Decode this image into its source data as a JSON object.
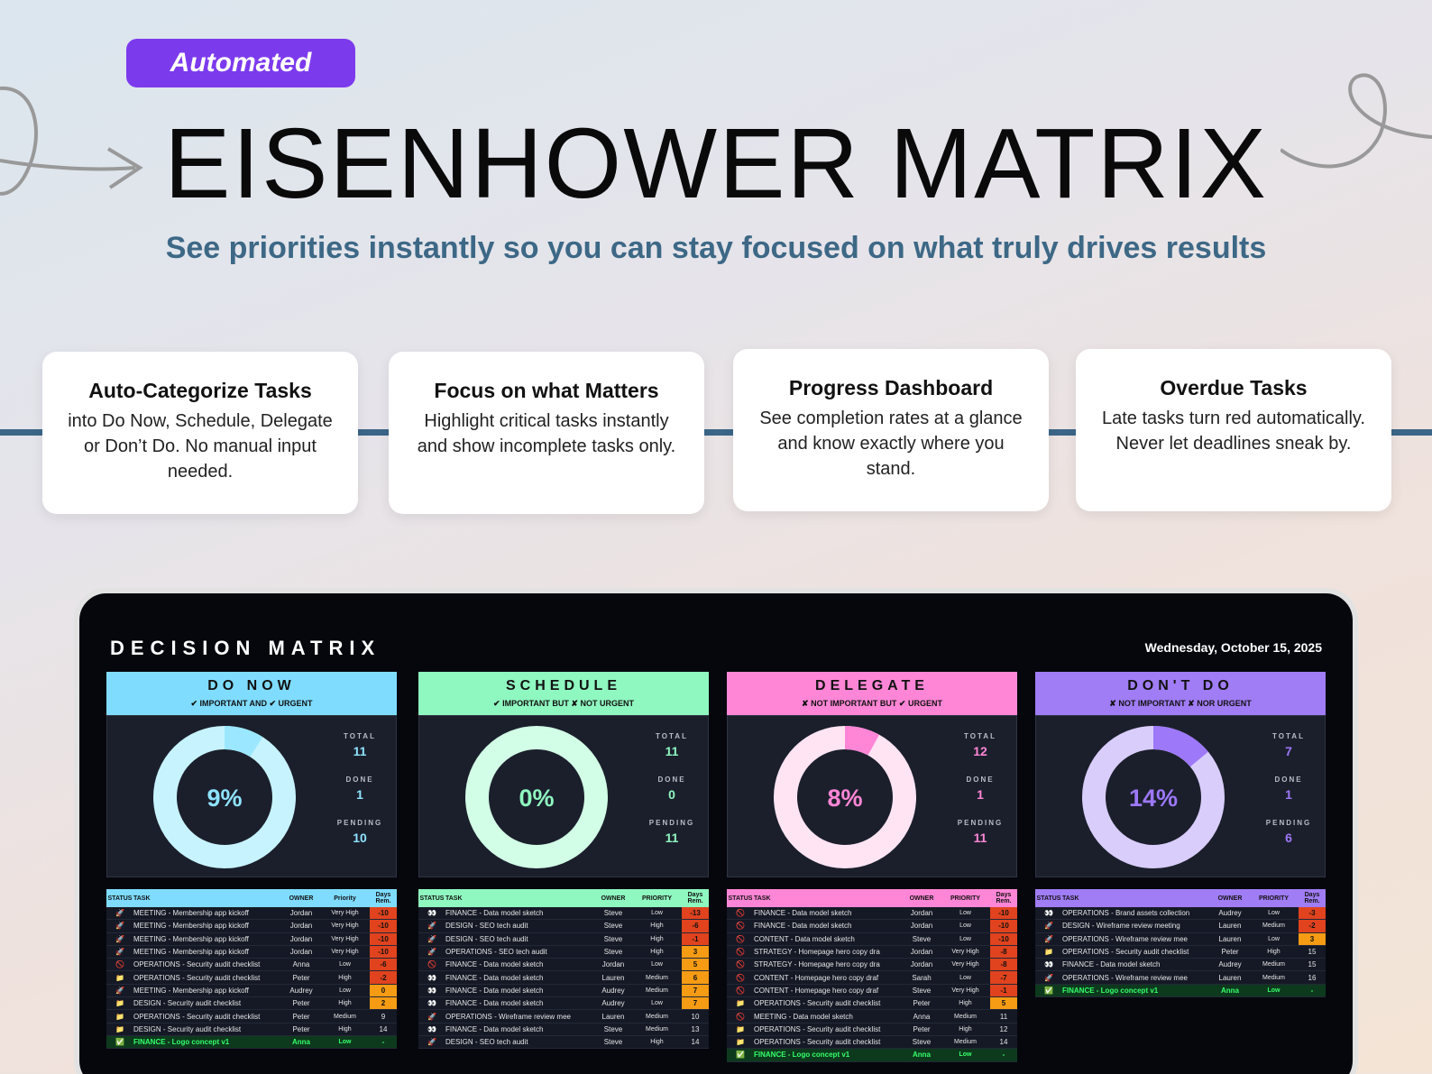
{
  "badge": "Automated",
  "title": "EISENHOWER MATRIX",
  "subtitle": "See priorities instantly so you can stay focused on what truly drives results",
  "features": [
    {
      "title": "Auto-Categorize Tasks",
      "text": "into Do Now, Schedule, Delegate or Don’t Do. No manual input needed."
    },
    {
      "title": "Focus on what Matters",
      "text": "Highlight critical tasks instantly and show incomplete tasks only."
    },
    {
      "title": "Progress Dashboard",
      "text": "See completion rates at a glance and know exactly where you stand."
    },
    {
      "title": "Overdue Tasks",
      "text": "Late tasks turn red automatically. Never let deadlines sneak by."
    }
  ],
  "dashboard": {
    "title": "DECISION MATRIX",
    "date": "Wednesday, October 15, 2025",
    "stat_labels": {
      "total": "TOTAL",
      "done": "DONE",
      "pending": "PENDING"
    },
    "quadrants": [
      {
        "name": "DO NOW",
        "subtitle": "✔ IMPORTANT AND ✔ URGENT",
        "color": "#7fdcff",
        "ring": "#c7f3ff",
        "accent": "#9be7ff",
        "text": "#8fe3ff",
        "percent": "9%",
        "fraction": 0.09,
        "total": "11",
        "done": "1",
        "pending": "10",
        "headers": [
          "STATUS",
          "TASK",
          "OWNER",
          "Priority",
          "Days Rem."
        ],
        "rows": [
          {
            "icon": "🚀",
            "task": "MEETING - Membership app kickoff",
            "owner": "Jordan",
            "priority": "Very High",
            "days": "-10",
            "days_color": "#e0431e"
          },
          {
            "icon": "🚀",
            "task": "MEETING - Membership app kickoff",
            "owner": "Jordan",
            "priority": "Very High",
            "days": "-10",
            "days_color": "#e0431e"
          },
          {
            "icon": "🚀",
            "task": "MEETING - Membership app kickoff",
            "owner": "Jordan",
            "priority": "Very High",
            "days": "-10",
            "days_color": "#e0431e"
          },
          {
            "icon": "🚀",
            "task": "MEETING - Membership app kickoff",
            "owner": "Jordan",
            "priority": "Very High",
            "days": "-10",
            "days_color": "#e0431e"
          },
          {
            "icon": "🚫",
            "task": "OPERATIONS - Security audit checklist",
            "owner": "Anna",
            "priority": "Low",
            "days": "-6",
            "days_color": "#e0431e"
          },
          {
            "icon": "📁",
            "task": "OPERATIONS - Security audit checklist",
            "owner": "Peter",
            "priority": "High",
            "days": "-2",
            "days_color": "#e0431e"
          },
          {
            "icon": "🚀",
            "task": "MEETING - Membership app kickoff",
            "owner": "Audrey",
            "priority": "Low",
            "days": "0",
            "days_color": "#f59b14"
          },
          {
            "icon": "📁",
            "task": "DESIGN - Security audit checklist",
            "owner": "Peter",
            "priority": "High",
            "days": "2",
            "days_color": "#f59b14"
          },
          {
            "icon": "📁",
            "task": "OPERATIONS - Security audit checklist",
            "owner": "Peter",
            "priority": "Medium",
            "days": "9",
            "days_color": ""
          },
          {
            "icon": "📁",
            "task": "DESIGN - Security audit checklist",
            "owner": "Peter",
            "priority": "High",
            "days": "14",
            "days_color": ""
          },
          {
            "icon": "✅",
            "task": "FINANCE - Logo concept v1",
            "owner": "Anna",
            "priority": "Low",
            "days": "-",
            "days_color": "",
            "done": true
          }
        ]
      },
      {
        "name": "SCHEDULE",
        "subtitle": "✔ IMPORTANT BUT ✘ NOT URGENT",
        "color": "#8ff7c0",
        "ring": "#d2fde6",
        "accent": "#8ff7c0",
        "text": "#8ff7c0",
        "percent": "0%",
        "fraction": 0.0,
        "total": "11",
        "done": "0",
        "pending": "11",
        "headers": [
          "STATUS",
          "TASK",
          "OWNER",
          "PRIORITY",
          "Days Rem."
        ],
        "rows": [
          {
            "icon": "👀",
            "task": "FINANCE - Data model sketch",
            "owner": "Steve",
            "priority": "Low",
            "days": "-13",
            "days_color": "#e0431e"
          },
          {
            "icon": "🚀",
            "task": "DESIGN - SEO tech audit",
            "owner": "Steve",
            "priority": "High",
            "days": "-6",
            "days_color": "#e0431e"
          },
          {
            "icon": "🚀",
            "task": "DESIGN - SEO tech audit",
            "owner": "Steve",
            "priority": "High",
            "days": "-1",
            "days_color": "#e0431e"
          },
          {
            "icon": "🚀",
            "task": "OPERATIONS - SEO tech audit",
            "owner": "Steve",
            "priority": "High",
            "days": "3",
            "days_color": "#f59b14"
          },
          {
            "icon": "🚫",
            "task": "FINANCE - Data model sketch",
            "owner": "Jordan",
            "priority": "Low",
            "days": "5",
            "days_color": "#f59b14"
          },
          {
            "icon": "👀",
            "task": "FINANCE - Data model sketch",
            "owner": "Lauren",
            "priority": "Medium",
            "days": "6",
            "days_color": "#f59b14"
          },
          {
            "icon": "👀",
            "task": "FINANCE - Data model sketch",
            "owner": "Audrey",
            "priority": "Medium",
            "days": "7",
            "days_color": "#f59b14"
          },
          {
            "icon": "👀",
            "task": "FINANCE - Data model sketch",
            "owner": "Audrey",
            "priority": "Low",
            "days": "7",
            "days_color": "#f59b14"
          },
          {
            "icon": "🚀",
            "task": "OPERATIONS - Wireframe review mee",
            "owner": "Lauren",
            "priority": "Medium",
            "days": "10",
            "days_color": ""
          },
          {
            "icon": "👀",
            "task": "FINANCE - Data model sketch",
            "owner": "Steve",
            "priority": "Medium",
            "days": "13",
            "days_color": ""
          },
          {
            "icon": "🚀",
            "task": "DESIGN - SEO tech audit",
            "owner": "Steve",
            "priority": "High",
            "days": "14",
            "days_color": ""
          }
        ]
      },
      {
        "name": "DELEGATE",
        "subtitle": "✘ NOT IMPORTANT BUT ✔ URGENT",
        "color": "#ff86d6",
        "ring": "#ffe4f4",
        "accent": "#ff86d6",
        "text": "#ff86d6",
        "percent": "8%",
        "fraction": 0.08,
        "total": "12",
        "done": "1",
        "pending": "11",
        "headers": [
          "STATUS",
          "TASK",
          "OWNER",
          "PRIORITY",
          "Days Rem."
        ],
        "rows": [
          {
            "icon": "🚫",
            "task": "FINANCE - Data model sketch",
            "owner": "Jordan",
            "priority": "Low",
            "days": "-10",
            "days_color": "#e0431e"
          },
          {
            "icon": "🚫",
            "task": "FINANCE - Data model sketch",
            "owner": "Jordan",
            "priority": "Low",
            "days": "-10",
            "days_color": "#e0431e"
          },
          {
            "icon": "🚫",
            "task": "CONTENT - Data model sketch",
            "owner": "Steve",
            "priority": "Low",
            "days": "-10",
            "days_color": "#e0431e"
          },
          {
            "icon": "🚫",
            "task": "STRATEGY - Homepage hero copy dra",
            "owner": "Jordan",
            "priority": "Very High",
            "days": "-8",
            "days_color": "#e0431e"
          },
          {
            "icon": "🚫",
            "task": "STRATEGY - Homepage hero copy dra",
            "owner": "Jordan",
            "priority": "Very High",
            "days": "-8",
            "days_color": "#e0431e"
          },
          {
            "icon": "🚫",
            "task": "CONTENT - Homepage hero copy draf",
            "owner": "Sarah",
            "priority": "Low",
            "days": "-7",
            "days_color": "#e0431e"
          },
          {
            "icon": "🚫",
            "task": "CONTENT - Homepage hero copy draf",
            "owner": "Steve",
            "priority": "Very High",
            "days": "-1",
            "days_color": "#e0431e"
          },
          {
            "icon": "📁",
            "task": "OPERATIONS - Security audit checklist",
            "owner": "Peter",
            "priority": "High",
            "days": "5",
            "days_color": "#f59b14"
          },
          {
            "icon": "🚫",
            "task": "MEETING - Data model sketch",
            "owner": "Anna",
            "priority": "Medium",
            "days": "11",
            "days_color": ""
          },
          {
            "icon": "📁",
            "task": "OPERATIONS - Security audit checklist",
            "owner": "Peter",
            "priority": "High",
            "days": "12",
            "days_color": ""
          },
          {
            "icon": "📁",
            "task": "OPERATIONS - Security audit checklist",
            "owner": "Steve",
            "priority": "Medium",
            "days": "14",
            "days_color": ""
          },
          {
            "icon": "✅",
            "task": "FINANCE - Logo concept v1",
            "owner": "Anna",
            "priority": "Low",
            "days": "-",
            "days_color": "",
            "done": true
          }
        ]
      },
      {
        "name": "DON'T DO",
        "subtitle": "✘ NOT IMPORTANT ✘ NOR URGENT",
        "color": "#a07cf5",
        "ring": "#d9cdfb",
        "accent": "#9d78f8",
        "text": "#9d78f8",
        "percent": "14%",
        "fraction": 0.14,
        "total": "7",
        "done": "1",
        "pending": "6",
        "headers": [
          "STATUS",
          "TASK",
          "OWNER",
          "PRIORITY",
          "Days Rem."
        ],
        "rows": [
          {
            "icon": "👀",
            "task": "OPERATIONS - Brand assets collection",
            "owner": "Audrey",
            "priority": "Low",
            "days": "-3",
            "days_color": "#e0431e"
          },
          {
            "icon": "🚀",
            "task": "DESIGN - Wireframe review meeting",
            "owner": "Lauren",
            "priority": "Medium",
            "days": "-2",
            "days_color": "#e0431e"
          },
          {
            "icon": "🚀",
            "task": "OPERATIONS - Wireframe review mee",
            "owner": "Lauren",
            "priority": "Low",
            "days": "3",
            "days_color": "#f59b14"
          },
          {
            "icon": "📁",
            "task": "OPERATIONS - Security audit checklist",
            "owner": "Peter",
            "priority": "High",
            "days": "15",
            "days_color": ""
          },
          {
            "icon": "👀",
            "task": "FINANCE - Data model sketch",
            "owner": "Audrey",
            "priority": "Medium",
            "days": "15",
            "days_color": ""
          },
          {
            "icon": "🚀",
            "task": "OPERATIONS - Wireframe review mee",
            "owner": "Lauren",
            "priority": "Medium",
            "days": "16",
            "days_color": ""
          },
          {
            "icon": "✅",
            "task": "FINANCE - Logo concept v1",
            "owner": "Anna",
            "priority": "Low",
            "days": "-",
            "days_color": "",
            "done": true
          }
        ]
      }
    ]
  }
}
